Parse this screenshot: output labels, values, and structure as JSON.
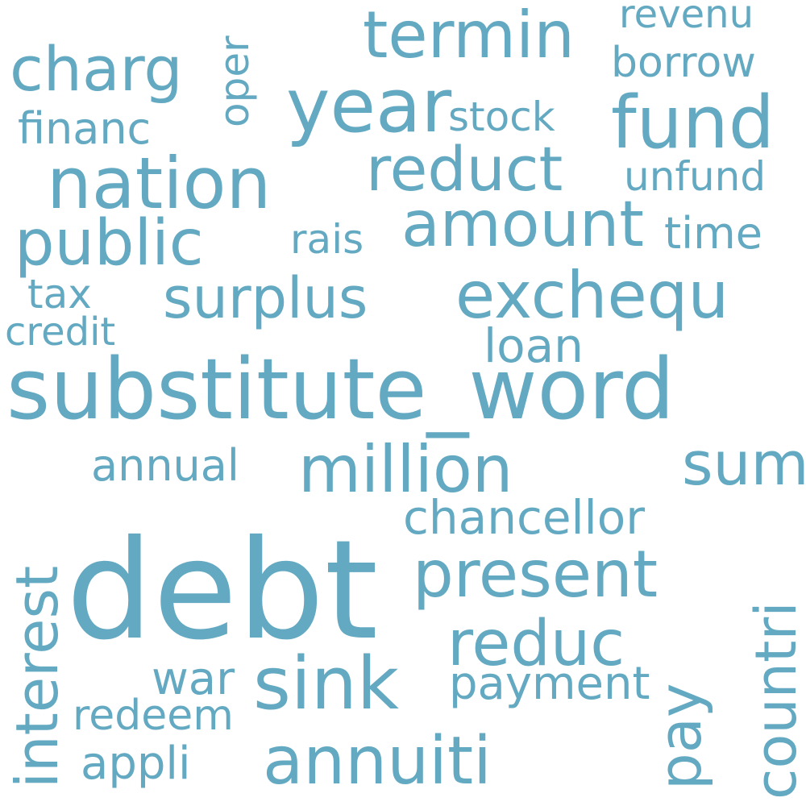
{
  "colors": {
    "word": "#64A9C2",
    "background": "#FFFFFF"
  },
  "words": [
    {
      "text": "debt",
      "rotated": false
    },
    {
      "text": "substitute_word",
      "rotated": false
    },
    {
      "text": "fund",
      "rotated": false
    },
    {
      "text": "nation",
      "rotated": false
    },
    {
      "text": "year",
      "rotated": false
    },
    {
      "text": "termin",
      "rotated": false
    },
    {
      "text": "charg",
      "rotated": false
    },
    {
      "text": "reduct",
      "rotated": false
    },
    {
      "text": "amount",
      "rotated": false
    },
    {
      "text": "public",
      "rotated": false
    },
    {
      "text": "exchequ",
      "rotated": false
    },
    {
      "text": "surplus",
      "rotated": false
    },
    {
      "text": "million",
      "rotated": false
    },
    {
      "text": "sum",
      "rotated": false
    },
    {
      "text": "present",
      "rotated": false
    },
    {
      "text": "reduc",
      "rotated": false
    },
    {
      "text": "sink",
      "rotated": false
    },
    {
      "text": "annuiti",
      "rotated": false
    },
    {
      "text": "interest",
      "rotated": true
    },
    {
      "text": "countri",
      "rotated": true
    },
    {
      "text": "pay",
      "rotated": true
    },
    {
      "text": "chancellor",
      "rotated": false
    },
    {
      "text": "payment",
      "rotated": false
    },
    {
      "text": "annual",
      "rotated": false
    },
    {
      "text": "borrow",
      "rotated": false
    },
    {
      "text": "revenu",
      "rotated": false
    },
    {
      "text": "unfund",
      "rotated": false
    },
    {
      "text": "time",
      "rotated": false
    },
    {
      "text": "stock",
      "rotated": false
    },
    {
      "text": "financ",
      "rotated": false
    },
    {
      "text": "oper",
      "rotated": true
    },
    {
      "text": "rais",
      "rotated": false
    },
    {
      "text": "tax",
      "rotated": false
    },
    {
      "text": "credit",
      "rotated": false
    },
    {
      "text": "loan",
      "rotated": false
    },
    {
      "text": "war",
      "rotated": false
    },
    {
      "text": "redeem",
      "rotated": false
    },
    {
      "text": "appli",
      "rotated": false
    }
  ]
}
